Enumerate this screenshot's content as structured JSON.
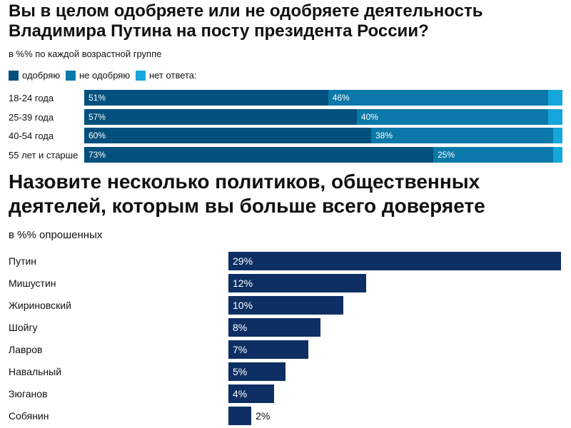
{
  "chart_data": [
    {
      "type": "bar",
      "stacked": true,
      "orientation": "horizontal",
      "title": "Вы в целом одобряете или не одобряете деятельность Владимира Путина на посту президента России?",
      "subtitle": "в %% по каждой возрастной группе",
      "categories": [
        "18-24 года",
        "25-39 года",
        "40-54 года",
        "55 лет и старше"
      ],
      "series": [
        {
          "name": "одобряю",
          "color": "#02507d",
          "values": [
            51,
            57,
            60,
            73
          ],
          "labels": [
            "51%",
            "57%",
            "60%",
            "73%"
          ]
        },
        {
          "name": "не одобряю",
          "color": "#0a78a8",
          "values": [
            46,
            40,
            38,
            25
          ],
          "labels": [
            "46%",
            "40%",
            "38%",
            "25%"
          ]
        },
        {
          "name": "нет ответа:",
          "color": "#15a6db",
          "values": [
            3,
            3,
            2,
            2
          ]
        }
      ],
      "xlim": [
        0,
        100
      ]
    },
    {
      "type": "bar",
      "orientation": "horizontal",
      "title": "Назовите несколько политиков, общественных деятелей, которым вы больше всего доверяете",
      "subtitle": "в %% опрошенных",
      "color": "#0e2f64",
      "categories": [
        "Путин",
        "Мишустин",
        "Жириновский",
        "Шойгу",
        "Лавров",
        "Навальный",
        "Зюганов",
        "Собянин"
      ],
      "values": [
        29,
        12,
        10,
        8,
        7,
        5,
        4,
        2
      ],
      "labels": [
        "29%",
        "12%",
        "10%",
        "8%",
        "7%",
        "5%",
        "4%",
        "2%"
      ]
    }
  ]
}
